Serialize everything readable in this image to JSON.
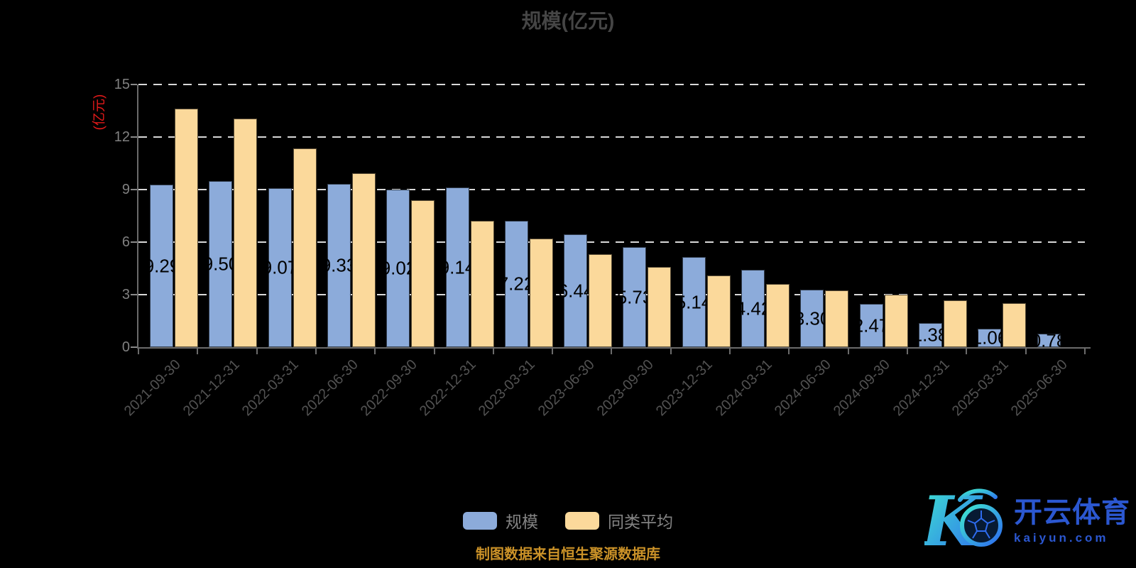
{
  "source_note": "制图数据来自恒生聚源数据库",
  "watermark": {
    "logo_letter": "K",
    "brand_cn": "开云体育",
    "brand_domain": "kaiyun.com"
  },
  "colors": {
    "background": "#000000",
    "title": "#454545",
    "axis": "#6b6b6b",
    "gridline": "#d8d8d8",
    "y_tick_label": "#808080",
    "x_tick_label": "#525252",
    "y_axis_name": "#e31a1a",
    "bar_label": "#000000",
    "legend_text": "#848484",
    "source_note": "#cb9228",
    "watermark_blue": "#2b57d0",
    "watermark_gradient": [
      "#3fe8cf",
      "#2e6cf0"
    ]
  },
  "chart_data": {
    "type": "bar",
    "title": "规模(亿元)",
    "ylabel": "(亿元)",
    "xlabel": "",
    "ylim": [
      0,
      15
    ],
    "yticks": [
      0,
      3,
      6,
      9,
      12,
      15
    ],
    "grid": "horizontal white dashed lines behind bars",
    "legend_position": "bottom center",
    "x_tick_label_rotation": 45,
    "categories": [
      "2021-09-30",
      "2021-12-31",
      "2022-03-31",
      "2022-06-30",
      "2022-09-30",
      "2022-12-31",
      "2023-03-31",
      "2023-06-30",
      "2023-09-30",
      "2023-12-31",
      "2024-03-31",
      "2024-06-30",
      "2024-09-30",
      "2024-12-31",
      "2025-03-31",
      "2025-06-30"
    ],
    "series": [
      {
        "name": "规模",
        "color": "#8cabda",
        "show_labels": true,
        "values": [
          9.29,
          9.5,
          9.07,
          9.33,
          9.02,
          9.14,
          7.22,
          6.44,
          5.73,
          5.14,
          4.42,
          3.3,
          2.47,
          1.38,
          1.06,
          0.78
        ]
      },
      {
        "name": "同类平均",
        "color": "#fbd99b",
        "show_labels": false,
        "values": [
          13.62,
          13.06,
          11.36,
          9.95,
          8.4,
          7.2,
          6.2,
          5.3,
          4.6,
          4.08,
          3.6,
          3.24,
          3.0,
          2.66,
          2.5,
          null
        ]
      }
    ]
  }
}
